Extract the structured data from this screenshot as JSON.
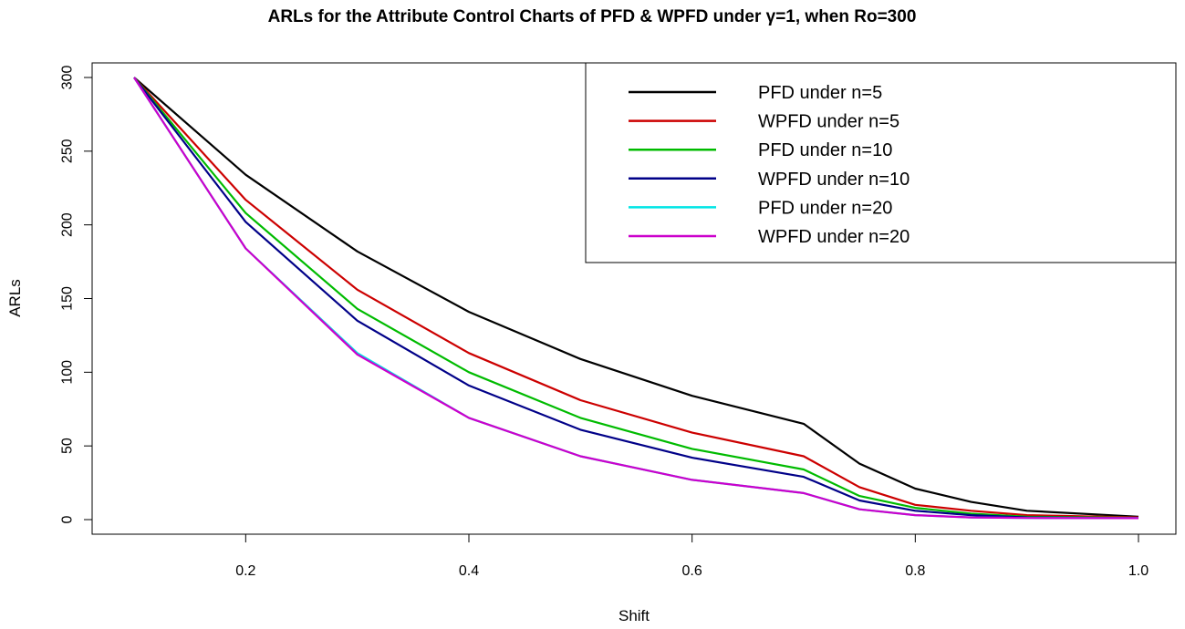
{
  "chart_data": {
    "type": "line",
    "title": "ARLs for the Attribute Control Charts of PFD & WPFD under γ=1, when Ro=300",
    "xlabel": "Shift",
    "ylabel": "ARLs",
    "xlim": [
      0.1,
      1.0
    ],
    "ylim": [
      0,
      300
    ],
    "xticks": [
      "0.2",
      "0.4",
      "0.6",
      "0.8",
      "1.0"
    ],
    "yticks": [
      "0",
      "50",
      "100",
      "150",
      "200",
      "250",
      "300"
    ],
    "legend_position": "top-right",
    "x": [
      0.1,
      0.2,
      0.3,
      0.4,
      0.5,
      0.6,
      0.7,
      0.75,
      0.8,
      0.85,
      0.9,
      1.0
    ],
    "series": [
      {
        "name": "PFD under n=5",
        "color": "#000000",
        "values": [
          300,
          234,
          182,
          141,
          109,
          84,
          65,
          38,
          21,
          12,
          6,
          2
        ]
      },
      {
        "name": "WPFD under n=5",
        "color": "#cc0000",
        "values": [
          300,
          217,
          156,
          113,
          81,
          59,
          43,
          22,
          10,
          6,
          3,
          1.5
        ]
      },
      {
        "name": "PFD under n=10",
        "color": "#00bb00",
        "values": [
          300,
          208,
          143,
          100,
          69,
          48,
          34,
          16,
          8,
          4,
          2,
          1.2
        ]
      },
      {
        "name": "WPFD under n=10",
        "color": "#000088",
        "values": [
          300,
          202,
          135,
          91,
          61,
          42,
          29,
          13,
          6,
          3,
          1.5,
          1
        ]
      },
      {
        "name": "PFD under n=20",
        "color": "#00e5e5",
        "values": [
          300,
          184,
          113,
          69,
          43,
          27,
          18,
          7,
          3,
          1.5,
          1.1,
          1
        ]
      },
      {
        "name": "WPFD under n=20",
        "color": "#cc00cc",
        "values": [
          300,
          184,
          112,
          69,
          43,
          27,
          18,
          7,
          3,
          1.5,
          1.1,
          1
        ]
      }
    ]
  }
}
